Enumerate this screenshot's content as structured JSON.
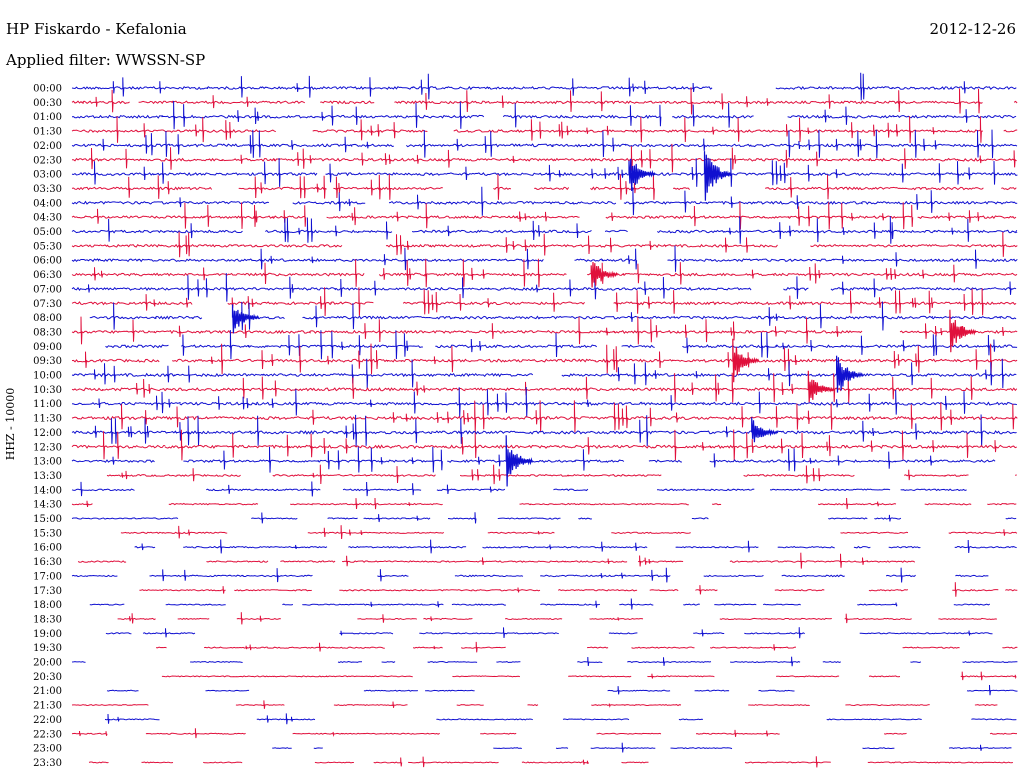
{
  "header": {
    "station": "HP Fiskardo - Kefalonia",
    "date": "2012-12-26",
    "filter": "Applied filter: WWSSN-SP",
    "channel": "HHZ - 10000"
  },
  "colors": {
    "blue": "#1010d0",
    "red": "#e0103c"
  },
  "chart_data": {
    "type": "line",
    "title": "HP Fiskardo - Kefalonia",
    "subtitle": "Applied filter: WWSSN-SP",
    "ylabel": "HHZ - 10000",
    "row_labels": [
      "00:00",
      "00:30",
      "01:00",
      "01:30",
      "02:00",
      "02:30",
      "03:00",
      "03:30",
      "04:00",
      "04:30",
      "05:00",
      "05:30",
      "06:00",
      "06:30",
      "07:00",
      "07:30",
      "08:00",
      "08:30",
      "09:00",
      "09:30",
      "10:00",
      "10:30",
      "11:00",
      "11:30",
      "12:00",
      "12:30",
      "13:00",
      "13:30",
      "14:00",
      "14:30",
      "15:00",
      "15:30",
      "16:00",
      "16:30",
      "17:00",
      "17:30",
      "18:00",
      "18:30",
      "19:00",
      "19:30",
      "20:00",
      "20:30",
      "21:00",
      "21:30",
      "22:00",
      "22:30",
      "23:00",
      "23:30"
    ],
    "series_colors": [
      "blue",
      "red"
    ],
    "activity": [
      0.9,
      0.85,
      0.9,
      0.85,
      0.9,
      0.9,
      0.9,
      0.85,
      0.9,
      0.85,
      0.85,
      0.85,
      0.85,
      0.9,
      0.9,
      0.9,
      0.9,
      0.9,
      0.9,
      0.95,
      0.95,
      0.95,
      0.95,
      1.0,
      1.0,
      1.0,
      0.8,
      0.6,
      0.55,
      0.45,
      0.45,
      0.45,
      0.5,
      0.5,
      0.5,
      0.45,
      0.4,
      0.4,
      0.4,
      0.4,
      0.35,
      0.35,
      0.35,
      0.35,
      0.35,
      0.35,
      0.35,
      0.35
    ],
    "events": [
      {
        "row": 6,
        "x": 0.59,
        "amp": 1.6
      },
      {
        "row": 6,
        "x": 0.67,
        "amp": 2.2
      },
      {
        "row": 16,
        "x": 0.17,
        "amp": 1.3
      },
      {
        "row": 19,
        "x": 0.7,
        "amp": 1.5
      },
      {
        "row": 17,
        "x": 0.93,
        "amp": 1.6
      },
      {
        "row": 20,
        "x": 0.81,
        "amp": 1.6
      },
      {
        "row": 26,
        "x": 0.46,
        "amp": 1.8
      },
      {
        "row": 21,
        "x": 0.78,
        "amp": 1.2
      },
      {
        "row": 24,
        "x": 0.72,
        "amp": 1.0
      },
      {
        "row": 13,
        "x": 0.55,
        "amp": 1.3
      }
    ]
  }
}
